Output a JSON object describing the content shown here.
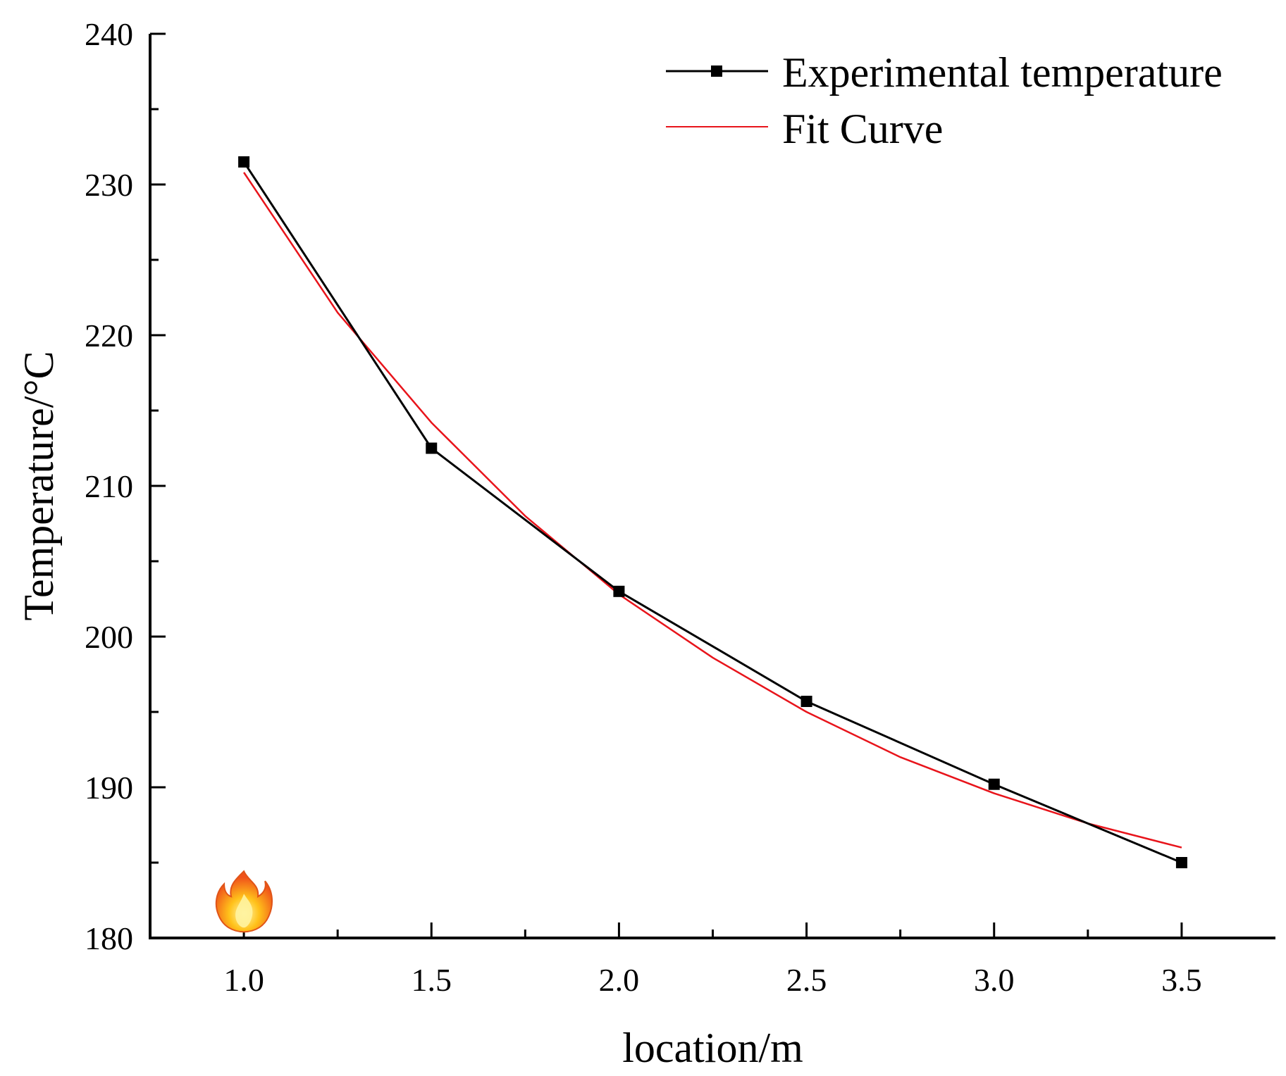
{
  "chart_data": {
    "type": "line",
    "xlabel": "location/m",
    "ylabel": "Temperature/°C",
    "xlim": [
      0.75,
      3.75
    ],
    "ylim": [
      180,
      240
    ],
    "x_ticks": [
      1.0,
      1.5,
      2.0,
      2.5,
      3.0,
      3.5
    ],
    "x_tick_labels": [
      "1.0",
      "1.5",
      "2.0",
      "2.5",
      "3.0",
      "3.5"
    ],
    "y_ticks": [
      180,
      190,
      200,
      210,
      220,
      230,
      240
    ],
    "y_tick_labels": [
      "180",
      "190",
      "200",
      "210",
      "220",
      "230",
      "240"
    ],
    "grid": false,
    "legend_position": "top-right",
    "series": [
      {
        "name": "Experimental temperature",
        "color": "#000000",
        "marker": "square",
        "x": [
          1.0,
          1.5,
          2.0,
          2.5,
          3.0,
          3.5
        ],
        "y": [
          231.5,
          212.5,
          203.0,
          195.7,
          190.2,
          185.0
        ]
      },
      {
        "name": "Fit Curve",
        "color": "#e8141b",
        "marker": "none",
        "x": [
          1.0,
          1.25,
          1.5,
          1.75,
          2.0,
          2.25,
          2.5,
          2.75,
          3.0,
          3.25,
          3.5
        ],
        "y": [
          230.8,
          221.5,
          214.2,
          208.0,
          202.8,
          198.6,
          195.0,
          192.0,
          189.6,
          187.6,
          186.0
        ]
      }
    ],
    "annotation_icon": "fire-icon",
    "annotation_at": {
      "x": 1.0,
      "y": 182
    }
  }
}
